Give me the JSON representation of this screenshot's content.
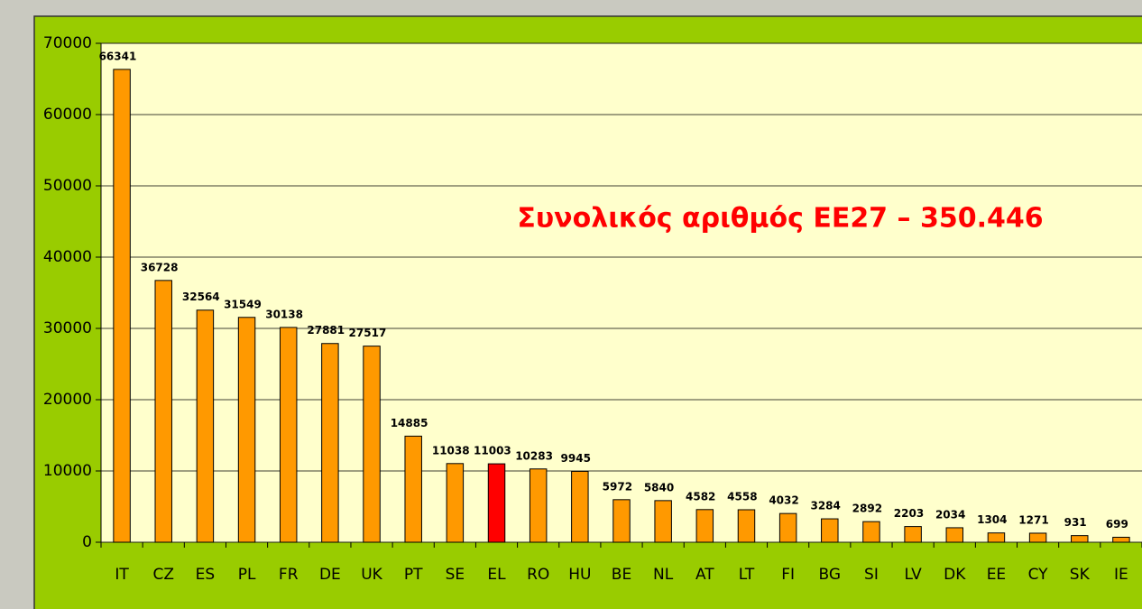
{
  "chart_data": {
    "type": "bar",
    "annotation": "Συνολικός αριθμός ΕΕ27 – 350.446",
    "categories": [
      "IT",
      "CZ",
      "ES",
      "PL",
      "FR",
      "DE",
      "UK",
      "PT",
      "SE",
      "EL",
      "RO",
      "HU",
      "BE",
      "NL",
      "AT",
      "LT",
      "FI",
      "BG",
      "SI",
      "LV",
      "DK",
      "EE",
      "CY",
      "SK",
      "IE"
    ],
    "values": [
      66341,
      36728,
      32564,
      31549,
      30138,
      27881,
      27517,
      14885,
      11038,
      11003,
      10283,
      9945,
      5972,
      5840,
      4582,
      4558,
      4032,
      3284,
      2892,
      2203,
      2034,
      1304,
      1271,
      931,
      699
    ],
    "colors": [
      "#ff9900",
      "#ff9900",
      "#ff9900",
      "#ff9900",
      "#ff9900",
      "#ff9900",
      "#ff9900",
      "#ff9900",
      "#ff9900",
      "#ff0000",
      "#ff9900",
      "#ff9900",
      "#ff9900",
      "#ff9900",
      "#ff9900",
      "#ff9900",
      "#ff9900",
      "#ff9900",
      "#ff9900",
      "#ff9900",
      "#ff9900",
      "#ff9900",
      "#ff9900",
      "#ff9900",
      "#ff9900"
    ],
    "ylim": [
      0,
      70000
    ],
    "yticks": [
      0,
      10000,
      20000,
      30000,
      40000,
      50000,
      60000,
      70000
    ],
    "grid": true
  }
}
